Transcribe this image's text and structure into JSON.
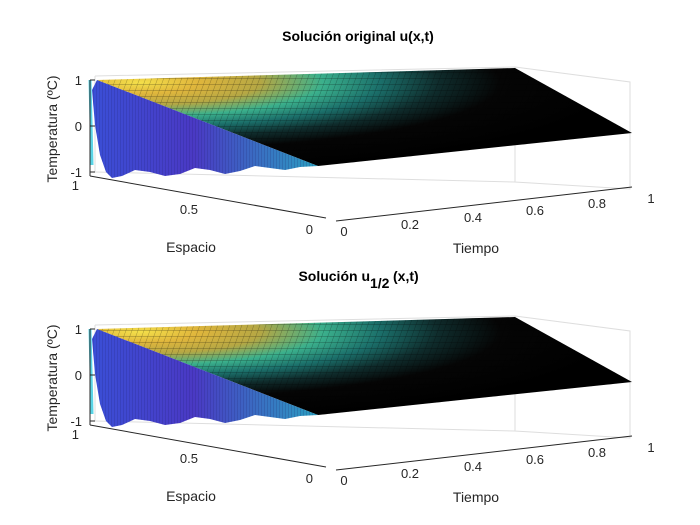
{
  "chart_data": [
    {
      "type": "surface",
      "title": "Solución original u(x,t)",
      "xlabel": "Tiempo",
      "ylabel": "Espacio",
      "zlabel": "Temperatura (ºC)",
      "x_ticks": [
        "0",
        "0.2",
        "0.4",
        "0.6",
        "0.8",
        "1"
      ],
      "y_ticks": [
        "0",
        "0.5",
        "1"
      ],
      "z_ticks": [
        "-1",
        "0",
        "1"
      ],
      "xlim": [
        0,
        1
      ],
      "ylim": [
        0,
        1
      ],
      "zlim": [
        -1,
        1
      ],
      "colormap": "parula",
      "colors": [
        "#3e26a8",
        "#2f9aa0",
        "#36b8a0",
        "#a4be55",
        "#e3b83a",
        "#f9fb0e"
      ]
    },
    {
      "type": "surface",
      "title_main": "Solución u",
      "title_sub": "1/2",
      "title_tail": "(x,t)",
      "xlabel": "Tiempo",
      "ylabel": "Espacio",
      "zlabel": "Temperatura (ºC)",
      "x_ticks": [
        "0",
        "0.2",
        "0.4",
        "0.6",
        "0.8",
        "1"
      ],
      "y_ticks": [
        "0",
        "0.5",
        "1"
      ],
      "z_ticks": [
        "-1",
        "0",
        "1"
      ],
      "xlim": [
        0,
        1
      ],
      "ylim": [
        0,
        1
      ],
      "zlim": [
        -1,
        1
      ],
      "colormap": "parula",
      "colors": [
        "#3e26a8",
        "#2f9aa0",
        "#36b8a0",
        "#a4be55",
        "#e3b83a",
        "#f9fb0e"
      ]
    }
  ]
}
